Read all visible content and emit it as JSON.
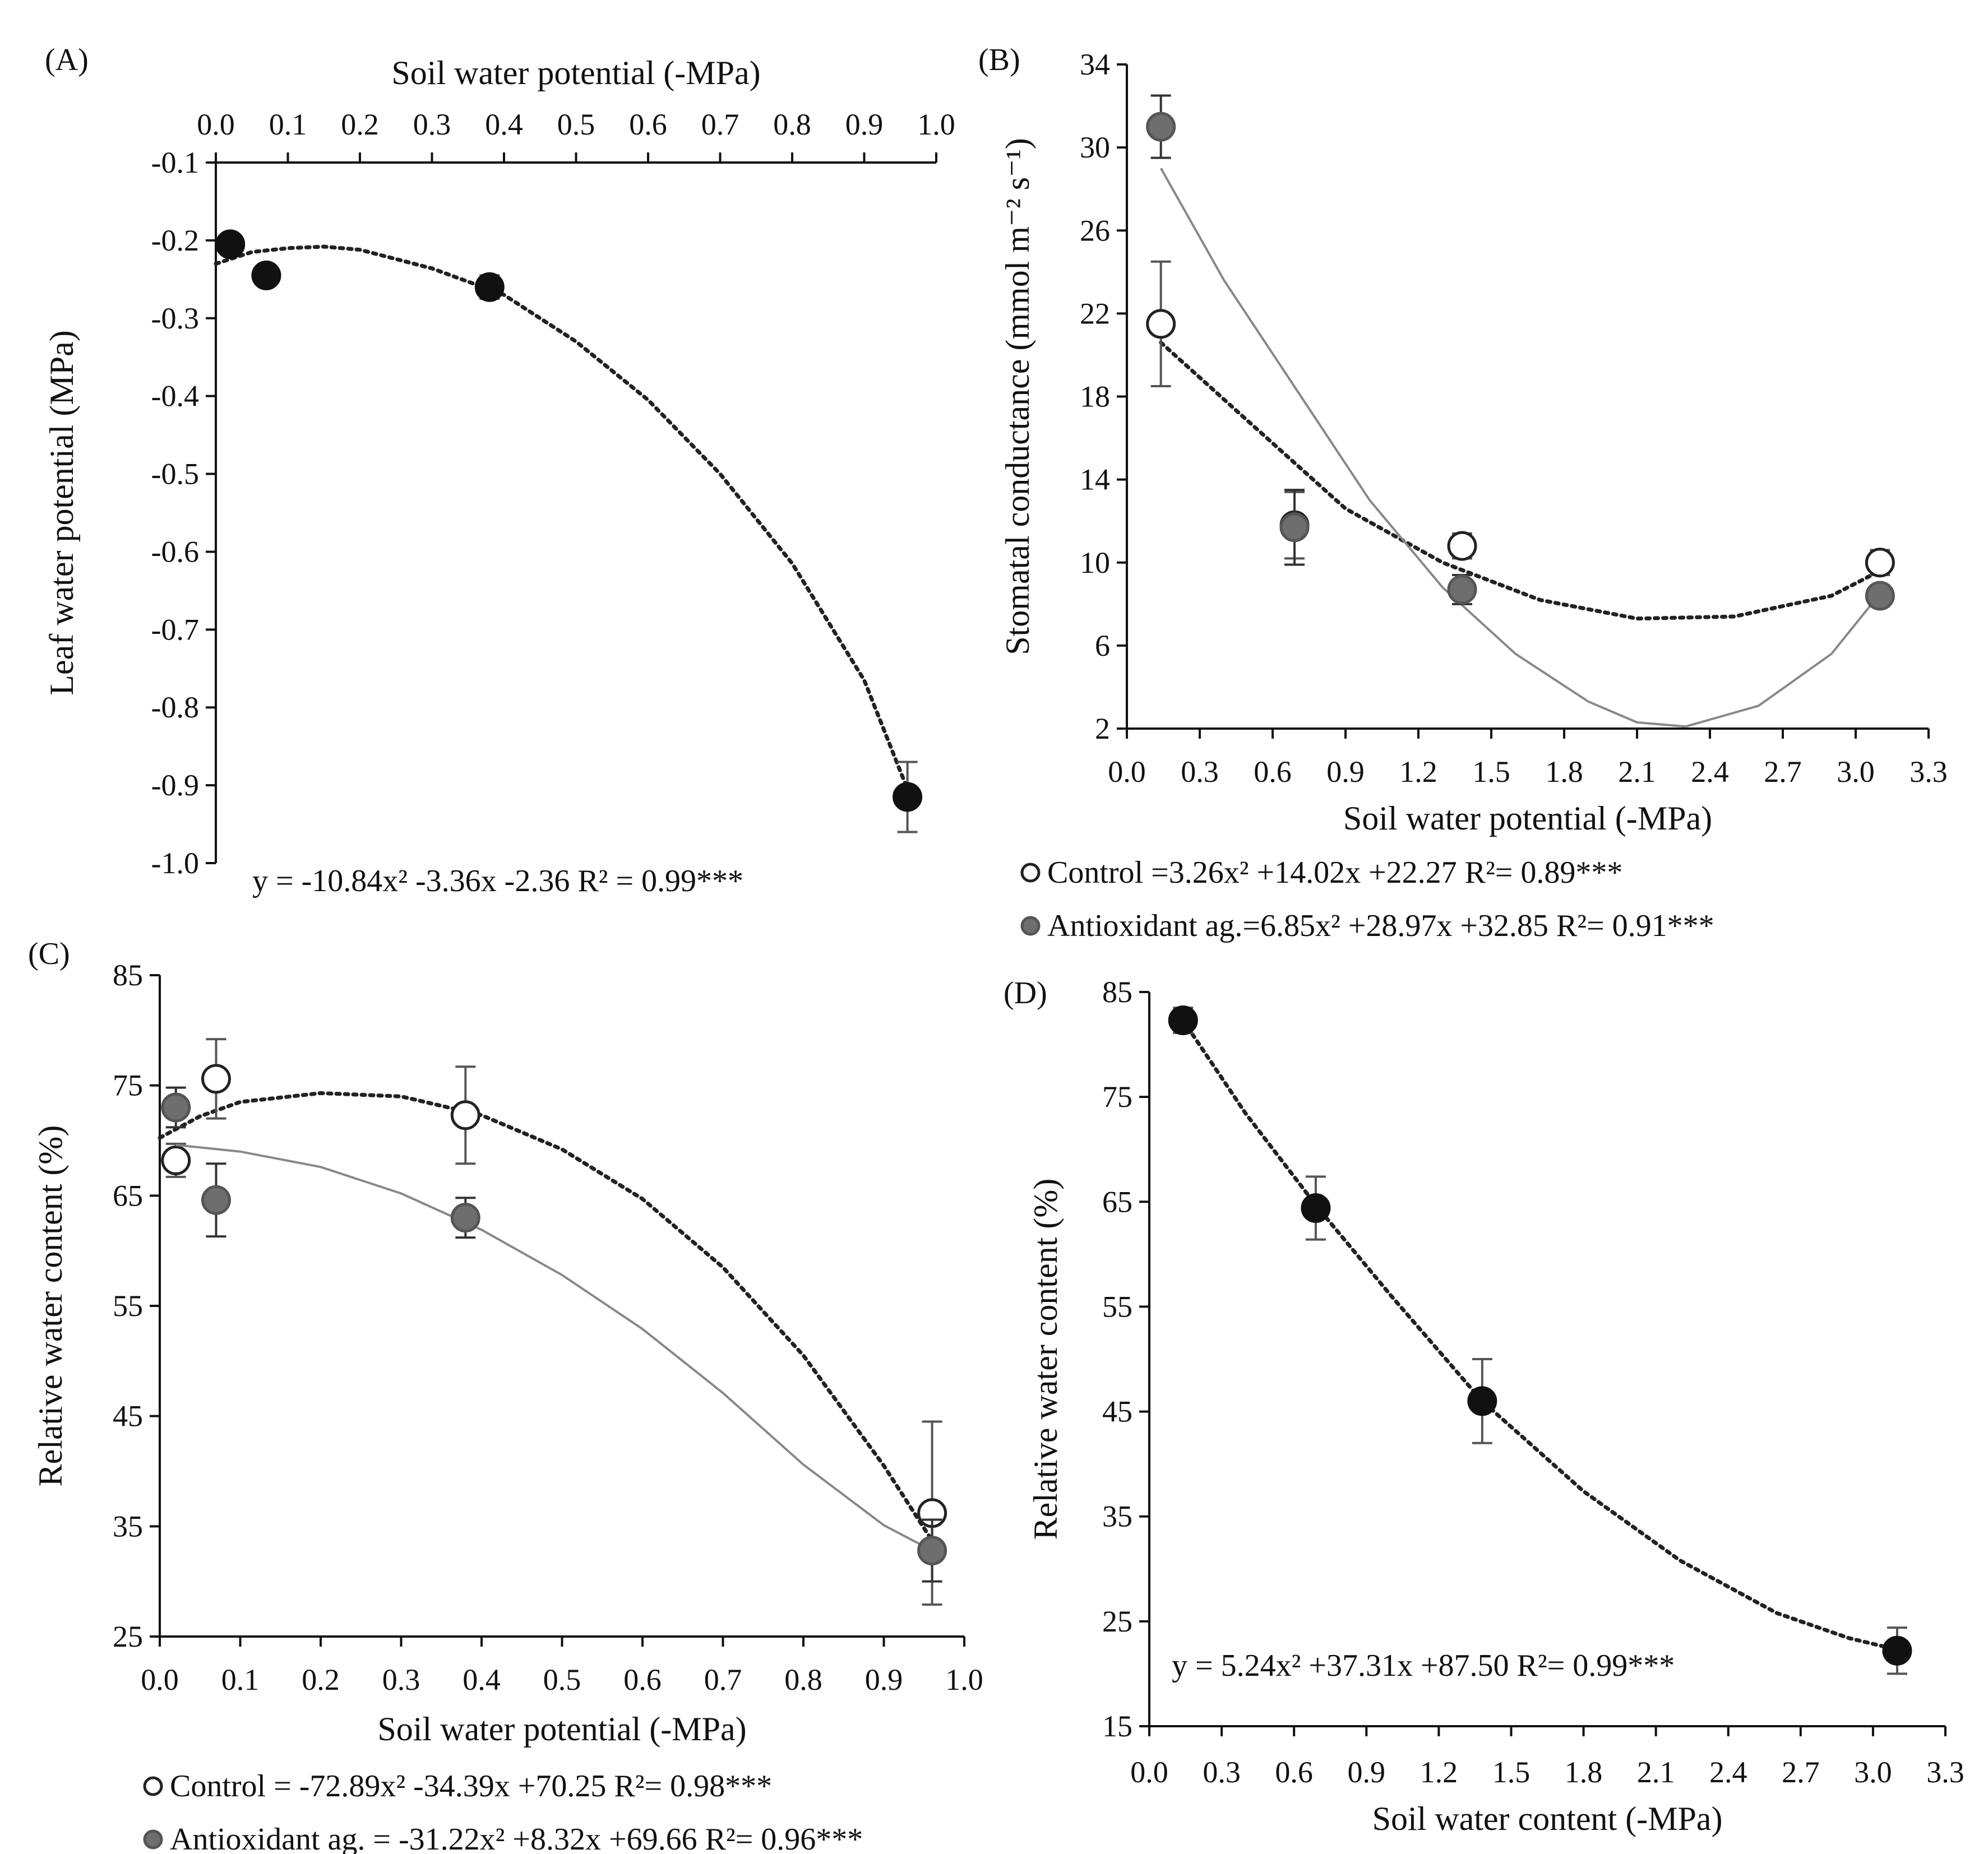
{
  "chart_data": [
    {
      "id": "A",
      "panel_label": "(A)",
      "type": "scatter",
      "xlabel": "Soil water potential (-MPa)",
      "ylabel": "Leaf water potential (MPa)",
      "xlim": [
        0.0,
        1.0
      ],
      "ylim": [
        -1.0,
        -0.1
      ],
      "x_ticks": [
        "0.0",
        "0.1",
        "0.2",
        "0.3",
        "0.4",
        "0.5",
        "0.6",
        "0.7",
        "0.8",
        "0.9",
        "1.0"
      ],
      "y_ticks": [
        "-0.1",
        "-0.2",
        "-0.3",
        "-0.4",
        "-0.5",
        "-0.6",
        "-0.7",
        "-0.8",
        "-0.9",
        "-1.0"
      ],
      "series": [
        {
          "name": "",
          "marker": "filled-black",
          "x": [
            0.02,
            0.07,
            0.38,
            0.96
          ],
          "y": [
            -0.205,
            -0.245,
            -0.26,
            -0.915
          ],
          "err": [
            0.01,
            0.01,
            0.015,
            0.045
          ],
          "fit_style": "dotted",
          "fit_color": "#222222",
          "fit_points": [
            [
              0.0,
              -0.23
            ],
            [
              0.05,
              -0.215
            ],
            [
              0.1,
              -0.21
            ],
            [
              0.15,
              -0.208
            ],
            [
              0.2,
              -0.212
            ],
            [
              0.3,
              -0.236
            ],
            [
              0.4,
              -0.27
            ],
            [
              0.5,
              -0.33
            ],
            [
              0.6,
              -0.405
            ],
            [
              0.7,
              -0.5
            ],
            [
              0.8,
              -0.615
            ],
            [
              0.9,
              -0.765
            ],
            [
              0.96,
              -0.905
            ]
          ]
        }
      ],
      "equations": [
        "y = -10.84x²  -3.36x  -2.36  R² = 0.99***"
      ]
    },
    {
      "id": "B",
      "panel_label": "(B)",
      "type": "scatter",
      "xlabel": "Soil water potential (-MPa)",
      "ylabel": "Stomatal conductance (mmol m⁻² s⁻¹)",
      "xlim": [
        0.0,
        3.3
      ],
      "ylim": [
        2,
        34
      ],
      "x_ticks": [
        "0.0",
        "0.3",
        "0.6",
        "0.9",
        "1.2",
        "1.5",
        "1.8",
        "2.1",
        "2.4",
        "2.7",
        "3.0",
        "3.3"
      ],
      "y_ticks": [
        "2",
        "6",
        "10",
        "14",
        "18",
        "22",
        "26",
        "30",
        "34"
      ],
      "series": [
        {
          "name": "Control",
          "marker": "open",
          "x": [
            0.14,
            0.69,
            1.38,
            3.1
          ],
          "y": [
            21.5,
            11.8,
            10.8,
            10.0
          ],
          "err": [
            3.0,
            1.6,
            0.6,
            0.6
          ],
          "fit_style": "dotted",
          "fit_color": "#222222",
          "fit_points": [
            [
              0.14,
              20.6
            ],
            [
              0.5,
              16.8
            ],
            [
              0.9,
              12.6
            ],
            [
              1.3,
              10.0
            ],
            [
              1.7,
              8.2
            ],
            [
              2.1,
              7.3
            ],
            [
              2.5,
              7.4
            ],
            [
              2.9,
              8.4
            ],
            [
              3.1,
              9.6
            ]
          ]
        },
        {
          "name": "Antioxidant ag.",
          "marker": "filled-gray",
          "x": [
            0.14,
            0.69,
            1.38,
            3.1
          ],
          "y": [
            31.0,
            11.7,
            8.7,
            8.4
          ],
          "err": [
            1.5,
            1.8,
            0.7,
            0.5
          ],
          "fit_style": "solid",
          "fit_color": "#888888",
          "fit_points": [
            [
              0.14,
              29.0
            ],
            [
              0.4,
              23.6
            ],
            [
              0.7,
              18.3
            ],
            [
              1.0,
              13.0
            ],
            [
              1.3,
              8.8
            ],
            [
              1.6,
              5.6
            ],
            [
              1.9,
              3.3
            ],
            [
              2.1,
              2.3
            ],
            [
              2.3,
              2.1
            ],
            [
              2.6,
              3.1
            ],
            [
              2.9,
              5.6
            ],
            [
              3.1,
              8.5
            ]
          ]
        }
      ],
      "equations": [
        "Control =3.26x²  +14.02x  +22.27  R²= 0.89***",
        "Antioxidant ag.=6.85x²  +28.97x  +32.85  R²= 0.91***"
      ]
    },
    {
      "id": "C",
      "panel_label": "(C)",
      "type": "scatter",
      "xlabel": "Soil water potential (-MPa)",
      "ylabel": "Relative water content (%)",
      "xlim": [
        0.0,
        1.0
      ],
      "ylim": [
        25,
        85
      ],
      "x_ticks": [
        "0.0",
        "0.1",
        "0.2",
        "0.3",
        "0.4",
        "0.5",
        "0.6",
        "0.7",
        "0.8",
        "0.9",
        "1.0"
      ],
      "y_ticks": [
        "25",
        "35",
        "45",
        "55",
        "65",
        "75",
        "85"
      ],
      "series": [
        {
          "name": "Control",
          "marker": "open",
          "x": [
            0.02,
            0.07,
            0.38,
            0.96
          ],
          "y": [
            68.2,
            75.6,
            72.3,
            36.2
          ],
          "err": [
            1.5,
            3.6,
            4.4,
            8.3
          ],
          "fit_style": "dotted",
          "fit_color": "#222222",
          "fit_points": [
            [
              0.0,
              70.25
            ],
            [
              0.05,
              72.2
            ],
            [
              0.1,
              73.5
            ],
            [
              0.2,
              74.3
            ],
            [
              0.3,
              74.0
            ],
            [
              0.4,
              72.3
            ],
            [
              0.5,
              69.2
            ],
            [
              0.6,
              64.7
            ],
            [
              0.7,
              58.5
            ],
            [
              0.8,
              50.5
            ],
            [
              0.9,
              40.5
            ],
            [
              0.96,
              33.7
            ]
          ]
        },
        {
          "name": "Antioxidant ag.",
          "marker": "filled-gray",
          "x": [
            0.02,
            0.07,
            0.38,
            0.96
          ],
          "y": [
            73.0,
            64.6,
            63.0,
            32.8
          ],
          "err": [
            1.8,
            3.3,
            1.8,
            2.8
          ],
          "fit_style": "solid",
          "fit_color": "#888888",
          "fit_points": [
            [
              0.02,
              69.6
            ],
            [
              0.1,
              69.0
            ],
            [
              0.2,
              67.6
            ],
            [
              0.3,
              65.2
            ],
            [
              0.4,
              61.9
            ],
            [
              0.5,
              57.8
            ],
            [
              0.6,
              52.9
            ],
            [
              0.7,
              47.1
            ],
            [
              0.8,
              40.6
            ],
            [
              0.9,
              35.1
            ],
            [
              0.96,
              32.8
            ]
          ]
        }
      ],
      "equations": [
        "Control = -72.89x²  -34.39x  +70.25  R²= 0.98***",
        "Antioxidant ag. = -31.22x²  +8.32x  +69.66  R²= 0.96***"
      ]
    },
    {
      "id": "D",
      "panel_label": "(D)",
      "type": "scatter",
      "xlabel": "Soil water content (-MPa)",
      "ylabel": "Relative water content (%)",
      "xlim": [
        0.0,
        3.3
      ],
      "ylim": [
        15,
        85
      ],
      "x_ticks": [
        "0.0",
        "0.3",
        "0.6",
        "0.9",
        "1.2",
        "1.5",
        "1.8",
        "2.1",
        "2.4",
        "2.7",
        "3.0",
        "3.3"
      ],
      "y_ticks": [
        "15",
        "25",
        "35",
        "45",
        "55",
        "65",
        "75",
        "85"
      ],
      "series": [
        {
          "name": "",
          "marker": "filled-black",
          "x": [
            0.14,
            0.69,
            1.38,
            3.1
          ],
          "y": [
            82.3,
            64.4,
            46.0,
            22.2
          ],
          "err": [
            1.2,
            3.0,
            4.0,
            2.2
          ],
          "fit_style": "dotted",
          "fit_color": "#222222",
          "fit_points": [
            [
              0.14,
              82.3
            ],
            [
              0.4,
              73.4
            ],
            [
              0.7,
              64.4
            ],
            [
              1.0,
              56.1
            ],
            [
              1.38,
              46.0
            ],
            [
              1.8,
              37.4
            ],
            [
              2.2,
              30.8
            ],
            [
              2.6,
              25.8
            ],
            [
              2.9,
              23.4
            ],
            [
              3.1,
              22.3
            ]
          ]
        }
      ],
      "equations": [
        "y = 5.24x²  +37.31x  +87.50  R²= 0.99***"
      ]
    }
  ]
}
